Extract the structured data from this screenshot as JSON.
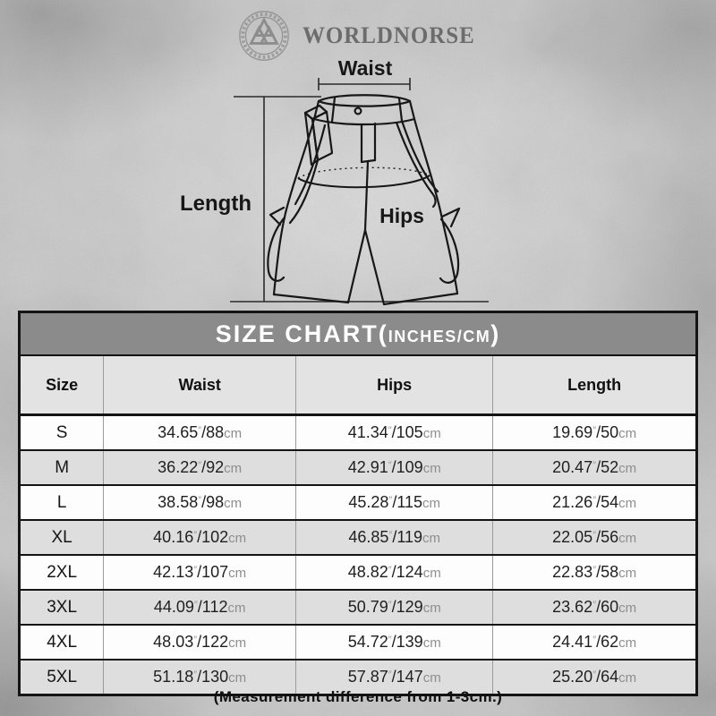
{
  "brand": {
    "name": "WORLDNORSE"
  },
  "diagram": {
    "waist_label": "Waist",
    "length_label": "Length",
    "hips_label": "Hips"
  },
  "size_chart": {
    "title_prefix": "SIZE CHART(",
    "title_small": "INCHES/CM",
    "title_suffix": ")",
    "columns": [
      "Size",
      "Waist",
      "Hips",
      "Length"
    ],
    "unit_inch_mark": "″",
    "unit_cm": "cm",
    "unit_separator": "/",
    "rows": [
      {
        "size": "S",
        "waist": [
          "34.65",
          "88"
        ],
        "hips": [
          "41.34",
          "105"
        ],
        "length": [
          "19.69",
          "50"
        ]
      },
      {
        "size": "M",
        "waist": [
          "36.22",
          "92"
        ],
        "hips": [
          "42.91",
          "109"
        ],
        "length": [
          "20.47",
          "52"
        ]
      },
      {
        "size": "L",
        "waist": [
          "38.58",
          "98"
        ],
        "hips": [
          "45.28",
          "115"
        ],
        "length": [
          "21.26",
          "54"
        ]
      },
      {
        "size": "XL",
        "waist": [
          "40.16",
          "102"
        ],
        "hips": [
          "46.85",
          "119"
        ],
        "length": [
          "22.05",
          "56"
        ]
      },
      {
        "size": "2XL",
        "waist": [
          "42.13",
          "107"
        ],
        "hips": [
          "48.82",
          "124"
        ],
        "length": [
          "22.83",
          "58"
        ]
      },
      {
        "size": "3XL",
        "waist": [
          "44.09",
          "112"
        ],
        "hips": [
          "50.79",
          "129"
        ],
        "length": [
          "23.62",
          "60"
        ]
      },
      {
        "size": "4XL",
        "waist": [
          "48.03",
          "122"
        ],
        "hips": [
          "54.72",
          "139"
        ],
        "length": [
          "24.41",
          "62"
        ]
      },
      {
        "size": "5XL",
        "waist": [
          "51.18",
          "130"
        ],
        "hips": [
          "57.87",
          "147"
        ],
        "length": [
          "25.20",
          "64"
        ]
      }
    ]
  },
  "footnote": "(Measurement difference from 1-3cm.)",
  "colors": {
    "title_bar_bg": "#8b8b8b",
    "header_row_bg": "#e3e3e3",
    "row_bg": "#fdfdfd",
    "row_alt_bg": "#dedede",
    "border_dark": "#141414",
    "grid_gray": "#9b9b9b",
    "text_dark": "#1f1f1f",
    "unit_gray": "#8e8e8e",
    "logo_gray": "#949494"
  }
}
